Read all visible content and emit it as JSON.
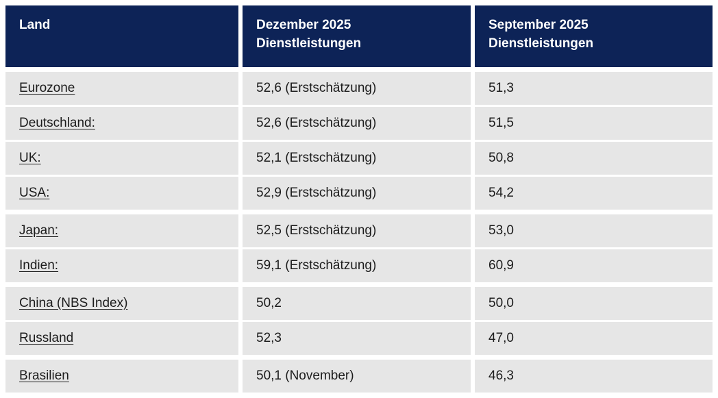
{
  "colors": {
    "header_background": "#0d2357",
    "header_text": "#ffffff",
    "row_background": "#e6e6e6",
    "row_text": "#1c1c1c",
    "page_background": "#ffffff"
  },
  "table": {
    "columns": [
      {
        "label": "Land"
      },
      {
        "label_line1": "Dezember 2025",
        "label_line2": "Dienstleistungen"
      },
      {
        "label_line1": "September 2025",
        "label_line2": "Dienstleistungen"
      }
    ],
    "rows": [
      {
        "land": "Eurozone",
        "dezember": "52,6 (Erstschätzung)",
        "september": "51,3"
      },
      {
        "land": "Deutschland:",
        "dezember": "52,6 (Erstschätzung)",
        "september": "51,5"
      },
      {
        "land": "UK:",
        "dezember": "52,1 (Erstschätzung)",
        "september": "50,8"
      },
      {
        "land": "USA:",
        "dezember": "52,9 (Erstschätzung)",
        "september": "54,2"
      },
      {
        "land": "Japan:",
        "dezember": "52,5 (Erstschätzung)",
        "september": "53,0"
      },
      {
        "land": "Indien:",
        "dezember": "59,1 (Erstschätzung)",
        "september": "60,9"
      },
      {
        "land": "China (NBS Index)",
        "dezember": "50,2",
        "september": "50,0"
      },
      {
        "land": "Russland",
        "dezember": "52,3",
        "september": "47,0"
      },
      {
        "land": "Brasilien",
        "dezember": "50,1 (November)",
        "september": "46,3"
      }
    ]
  }
}
